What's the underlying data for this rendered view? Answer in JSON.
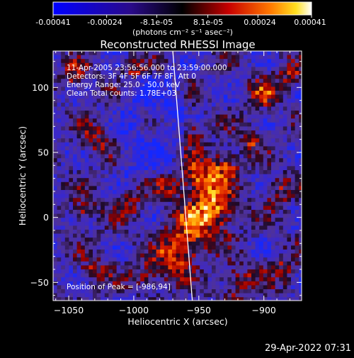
{
  "colorbar": {
    "ticks": [
      "-0.00041",
      "-0.00024",
      "-8.1e-05",
      "8.1e-05",
      "0.00024",
      "0.00041"
    ],
    "unit_label": "(photons cm⁻² s⁻¹ asec⁻²)"
  },
  "annotations": {
    "time_range": "11-Apr-2005 23:56:56.000 to 23:59:00.000",
    "detectors": "Detectors: 3F 4F 5F 6F 7F 8F, Att 0",
    "energy": "Energy Range: 25.0 - 50.0 keV",
    "clean": "Clean      Total counts: 1.78E+03",
    "peak": "Position of Peak = [-986,94]"
  },
  "footer": {
    "timestamp": "29-Apr-2022 07:31"
  },
  "chart_data": {
    "type": "heatmap",
    "title": "Reconstructed RHESSI Image",
    "xlabel": "Heliocentric X (arcsec)",
    "ylabel": "Heliocentric Y (arcsec)",
    "xlim": [
      -1062,
      -871
    ],
    "ylim": [
      -64,
      128
    ],
    "xticks": [
      -1050,
      -1000,
      -950,
      -900
    ],
    "yticks": [
      -50,
      0,
      50,
      100
    ],
    "clim": [
      -0.00041,
      0.00041
    ],
    "colormap": "RHESSI blue-purple-red-yellow",
    "limb_line": [
      [
        -970,
        128
      ],
      [
        -955,
        -64
      ]
    ],
    "grid": false,
    "peak": [
      -986,
      94
    ]
  }
}
